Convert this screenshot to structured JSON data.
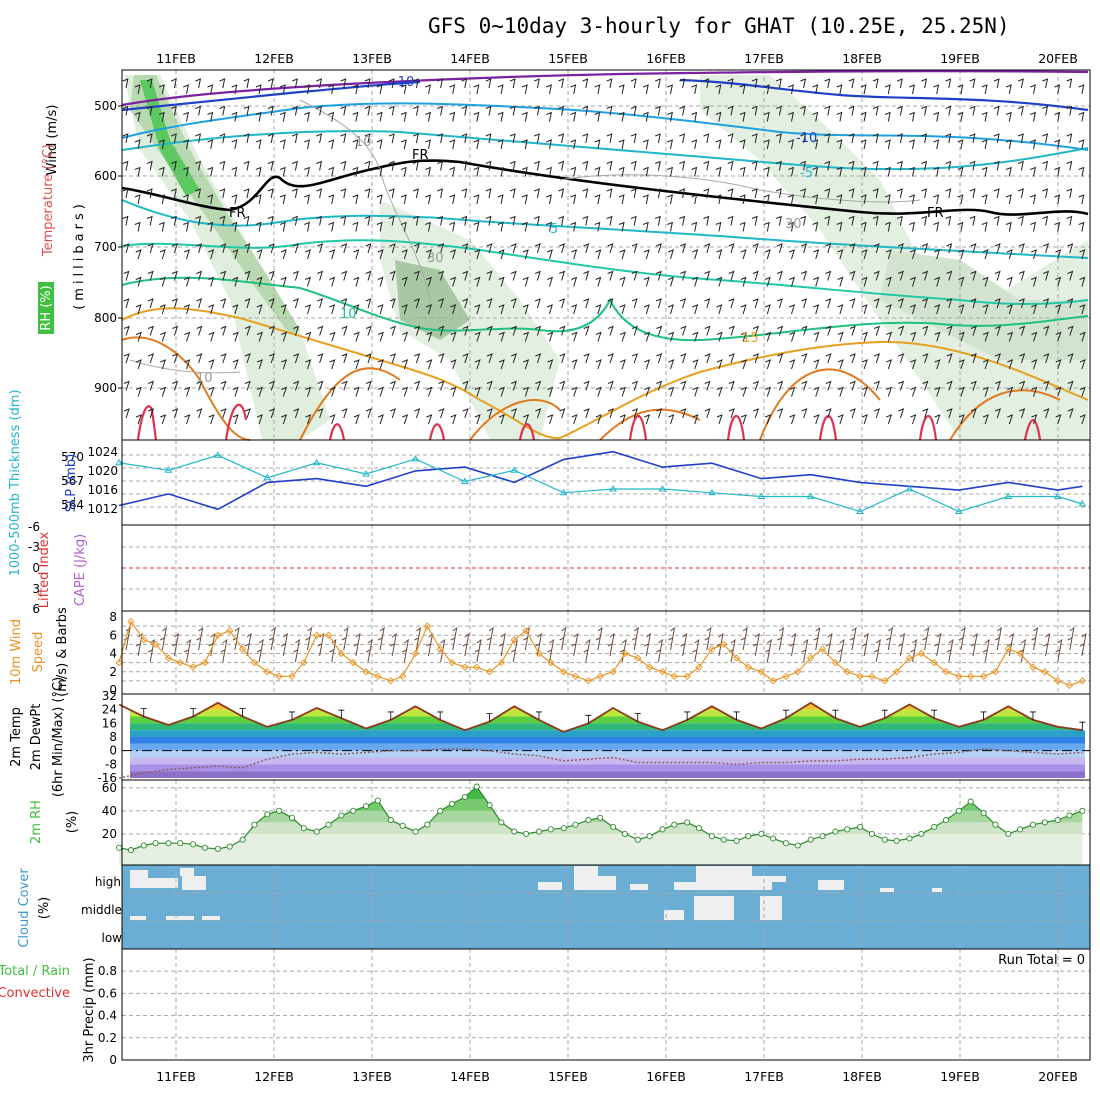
{
  "title": "GFS 0~10day 3-hourly for GHAT (10.25E, 25.25N)",
  "dates": [
    "11FEB",
    "12FEB",
    "13FEB",
    "14FEB",
    "15FEB",
    "16FEB",
    "17FEB",
    "18FEB",
    "19FEB",
    "20FEB"
  ],
  "colors": {
    "slp": "#1f3fc8",
    "thickness": "#22b8c8",
    "lifted": "#e03030",
    "cape": "#b060d0",
    "wind10m": "#e89420",
    "barb": "#6a4a3a",
    "rh2m": "#40c040",
    "cloud": "#6aaed6",
    "cloudGap": "#efefef",
    "tempLine": "#8b3a1a",
    "dewLine": "#8b5a5a",
    "temp_contour_cold": "#1e40c8",
    "temp_contour_mid": "#20b8c8",
    "temp_contour_warm": "#e8a020"
  },
  "panels": {
    "sounding": {
      "labels": {
        "wind": "Wind (m/s)",
        "temperature": "Temperature (°C)",
        "rh": "RH (%)",
        "pressure_axis": "(millibars)"
      },
      "yticks": [
        "500",
        "600",
        "700",
        "800",
        "900"
      ],
      "contour_labels": {
        "t_minus10": "-10",
        "t_minus5": "-5",
        "t_plus5": "5",
        "t_plus10": "10",
        "t_plus15": "15",
        "freezing": "FR",
        "rh10": "10",
        "rh30": "30"
      }
    },
    "slp": {
      "labels": {
        "thickness": "1000-500mb Thickness (dm)",
        "slp": "SLP (mb)"
      },
      "left_ticks": [
        "570",
        "567",
        "564"
      ],
      "right_ticks": [
        "1024",
        "1020",
        "1016",
        "1012"
      ]
    },
    "lifted": {
      "labels": {
        "lifted": "Lifted Index",
        "cape": "CAPE (J/kg)"
      },
      "ticks": [
        "-6",
        "-3",
        "0",
        "3",
        "6"
      ]
    },
    "wind": {
      "labels": {
        "line1": "10m Wind",
        "line2": "Speed",
        "line3": "(m/s) & Barbs"
      },
      "ticks": [
        "8",
        "6",
        "4",
        "2",
        "0"
      ]
    },
    "temp": {
      "labels": {
        "line1": "2m Temp",
        "line2": "2m DewPt",
        "line3": "(6hr Min/Max) (°C)"
      },
      "ticks": [
        "32",
        "24",
        "16",
        "8",
        "0",
        "-8",
        "-16"
      ]
    },
    "rh": {
      "labels": {
        "line1": "2m RH",
        "unit": "(%)"
      },
      "ticks": [
        "60",
        "40",
        "20"
      ]
    },
    "cloud": {
      "labels": {
        "line1": "Cloud Cover",
        "unit": "(%)"
      },
      "levels": [
        "high",
        "middle",
        "low"
      ]
    },
    "precip": {
      "labels": {
        "left1": "Total / Rain",
        "left2": "Convective",
        "axis": "3hr Precip (mm)"
      },
      "ticks": [
        "0.8",
        "0.6",
        "0.4",
        "0.2",
        "0"
      ],
      "run_total": "Run Total = 0"
    }
  },
  "chart_data": [
    {
      "type": "line",
      "name": "slp_thickness",
      "x_unit": "days since 00Z 10FEB (3-hourly)",
      "series": [
        {
          "name": "SLP (mb)",
          "x": [
            0.5,
            1,
            1.5,
            2,
            2.5,
            3,
            3.5,
            4,
            4.5,
            5,
            5.5,
            6,
            6.5,
            7,
            7.5,
            8,
            8.5,
            9,
            9.5,
            10,
            10.25
          ],
          "values": [
            1011,
            1014,
            1010,
            1017,
            1018,
            1016,
            1020,
            1021,
            1017,
            1023,
            1025,
            1021,
            1022,
            1018,
            1019,
            1017,
            1016,
            1015,
            1017,
            1015,
            1016
          ]
        },
        {
          "name": "1000-500mb Thickness (dm)",
          "x": [
            0.5,
            1,
            1.5,
            2,
            2.5,
            3,
            3.5,
            4,
            4.5,
            5,
            5.5,
            6,
            6.5,
            7,
            7.5,
            8,
            8.5,
            9,
            9.5,
            10,
            10.25
          ],
          "values": [
            569.5,
            568.5,
            570.5,
            567.5,
            569.5,
            568,
            570,
            567,
            568.5,
            565.5,
            566,
            566,
            565.5,
            565,
            565,
            563,
            566,
            563,
            565,
            565,
            564
          ]
        }
      ],
      "ylim_left": [
        562,
        572
      ],
      "ylim_right": [
        1008,
        1027
      ]
    },
    {
      "type": "line",
      "name": "wind10m",
      "x": [
        0.5,
        0.62,
        0.75,
        0.87,
        1,
        1.12,
        1.25,
        1.37,
        1.5,
        1.62,
        1.75,
        1.87,
        2,
        2.12,
        2.25,
        2.37,
        2.5,
        2.62,
        2.75,
        2.87,
        3,
        3.12,
        3.25,
        3.37,
        3.5,
        3.62,
        3.75,
        3.87,
        4,
        4.12,
        4.25,
        4.37,
        4.5,
        4.62,
        4.75,
        4.87,
        5,
        5.12,
        5.25,
        5.37,
        5.5,
        5.62,
        5.75,
        5.87,
        6,
        6.12,
        6.25,
        6.37,
        6.5,
        6.62,
        6.75,
        6.87,
        7,
        7.12,
        7.25,
        7.37,
        7.5,
        7.62,
        7.75,
        7.87,
        8,
        8.12,
        8.25,
        8.37,
        8.5,
        8.62,
        8.75,
        8.87,
        9,
        9.12,
        9.25,
        9.37,
        9.5,
        9.62,
        9.75,
        9.87,
        10,
        10.12,
        10.25
      ],
      "values": [
        3,
        7.5,
        5.5,
        5,
        3.5,
        3,
        2.5,
        3,
        6,
        6.5,
        4.5,
        3,
        2,
        1.5,
        1.5,
        3,
        6,
        6,
        4,
        3,
        2,
        1.5,
        1,
        1.5,
        4,
        7,
        4.5,
        3,
        2.5,
        2.5,
        2,
        3,
        5.5,
        6.5,
        4,
        3,
        2,
        1.5,
        1,
        1.5,
        2,
        4,
        3.5,
        2.5,
        2,
        1.5,
        1.5,
        2.5,
        4.5,
        5,
        3.5,
        2.5,
        2,
        1,
        1.5,
        2,
        3.5,
        4.5,
        3,
        2,
        1.5,
        1.5,
        1,
        2,
        3.5,
        4,
        3,
        2,
        1.5,
        1.5,
        1.5,
        2,
        4.5,
        4,
        2.5,
        2,
        1,
        0.5,
        1
      ],
      "ylim": [
        0,
        8
      ]
    },
    {
      "type": "area",
      "name": "temp2m",
      "x": [
        0.5,
        0.75,
        1,
        1.25,
        1.5,
        1.75,
        2,
        2.25,
        2.5,
        2.75,
        3,
        3.25,
        3.5,
        3.75,
        4,
        4.25,
        4.5,
        4.75,
        5,
        5.25,
        5.5,
        5.75,
        6,
        6.25,
        6.5,
        6.75,
        7,
        7.25,
        7.5,
        7.75,
        8,
        8.25,
        8.5,
        8.75,
        9,
        9.25,
        9.5,
        9.75,
        10,
        10.25
      ],
      "temperature": [
        27,
        20,
        15,
        20,
        28,
        20,
        14,
        18,
        25,
        19,
        13,
        18,
        26,
        18,
        12,
        17,
        26,
        18,
        11,
        16,
        25,
        17,
        12,
        18,
        26,
        18,
        13,
        19,
        28,
        19,
        14,
        19,
        27,
        19,
        14,
        18,
        26,
        18,
        14,
        12
      ],
      "dewpoint": [
        -16,
        -13,
        -11,
        -10,
        -9,
        -10,
        -5,
        -2,
        -1,
        -2,
        -1,
        0,
        0,
        1,
        1,
        0,
        -2,
        -3,
        -6,
        -5,
        -4,
        -7,
        -7,
        -7,
        -7,
        -8,
        -7,
        -7,
        -6,
        -6,
        -5,
        -5,
        -4,
        -2,
        -1,
        1,
        0,
        -1,
        -2,
        -1
      ],
      "ylim": [
        -16,
        32
      ]
    },
    {
      "type": "area",
      "name": "rh2m",
      "x": [
        0.5,
        0.62,
        0.75,
        0.87,
        1,
        1.12,
        1.25,
        1.37,
        1.5,
        1.62,
        1.75,
        1.87,
        2,
        2.12,
        2.25,
        2.37,
        2.5,
        2.62,
        2.75,
        2.87,
        3,
        3.12,
        3.25,
        3.37,
        3.5,
        3.62,
        3.75,
        3.87,
        4,
        4.12,
        4.25,
        4.37,
        4.5,
        4.62,
        4.75,
        4.87,
        5,
        5.12,
        5.25,
        5.37,
        5.5,
        5.62,
        5.75,
        5.87,
        6,
        6.12,
        6.25,
        6.37,
        6.5,
        6.62,
        6.75,
        6.87,
        7,
        7.12,
        7.25,
        7.37,
        7.5,
        7.62,
        7.75,
        7.87,
        8,
        8.12,
        8.25,
        8.37,
        8.5,
        8.62,
        8.75,
        8.87,
        9,
        9.12,
        9.25,
        9.37,
        9.5,
        9.62,
        9.75,
        9.87,
        10,
        10.12,
        10.25
      ],
      "values": [
        8,
        6,
        10,
        12,
        12,
        12,
        11,
        8,
        7,
        9,
        15,
        28,
        37,
        40,
        34,
        25,
        22,
        28,
        36,
        40,
        44,
        49,
        32,
        27,
        22,
        28,
        40,
        46,
        52,
        61,
        45,
        30,
        22,
        20,
        22,
        24,
        25,
        28,
        32,
        34,
        26,
        20,
        15,
        18,
        24,
        28,
        30,
        25,
        18,
        15,
        14,
        18,
        20,
        16,
        12,
        10,
        15,
        18,
        22,
        24,
        26,
        20,
        15,
        14,
        16,
        20,
        26,
        32,
        40,
        48,
        38,
        28,
        20,
        24,
        28,
        30,
        32,
        36,
        40
      ],
      "ylim": [
        0,
        65
      ]
    },
    {
      "type": "heatmap",
      "name": "cloud_cover",
      "levels": [
        "high",
        "middle",
        "low"
      ],
      "note": "mostly clear sky with scattered high/middle cloud around 11FEB, 15FEB-17FEB"
    },
    {
      "type": "bar",
      "name": "precip3hr",
      "values": [],
      "ylim": [
        0,
        1
      ]
    }
  ]
}
